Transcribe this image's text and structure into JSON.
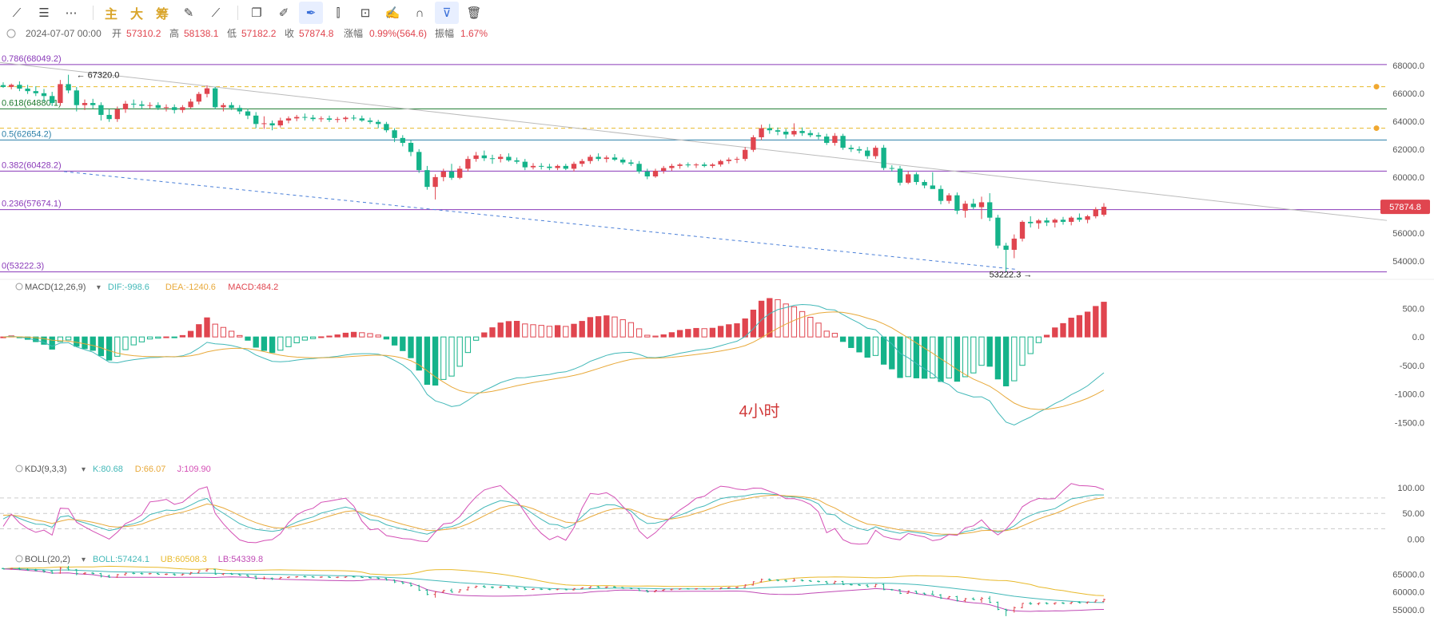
{
  "toolbar": {
    "items": [
      {
        "icon": "line-tool-icon",
        "glyph": "⟋"
      },
      {
        "icon": "horizontal-lines-icon",
        "glyph": "☰"
      },
      {
        "icon": "more-icon",
        "glyph": "⋯"
      },
      {
        "sep": true
      },
      {
        "text": "主"
      },
      {
        "text": "大"
      },
      {
        "text": "筹"
      },
      {
        "icon": "draw-edit-icon",
        "glyph": "✎"
      },
      {
        "icon": "brush-tool-icon",
        "glyph": "⟋"
      },
      {
        "sep": true
      },
      {
        "icon": "copy-icon",
        "glyph": "❐"
      },
      {
        "icon": "ruler-icon",
        "glyph": "✐"
      },
      {
        "icon": "pen-tool-icon",
        "glyph": "✒",
        "active": true
      },
      {
        "icon": "candlestick-icon",
        "glyph": "⫿"
      },
      {
        "icon": "lock-icon",
        "glyph": "⊡"
      },
      {
        "icon": "note-icon",
        "glyph": "✍"
      },
      {
        "icon": "magnet-icon",
        "glyph": "∩"
      },
      {
        "icon": "filter-icon",
        "glyph": "⊽",
        "active": true
      },
      {
        "icon": "trash-icon",
        "glyph": "🗑"
      }
    ]
  },
  "info_bar": {
    "date": "2024-07-07 00:00",
    "open_label": "开",
    "open": "57310.2",
    "high_label": "高",
    "high": "58138.1",
    "low_label": "低",
    "low": "57182.2",
    "close_label": "收",
    "close": "57874.8",
    "change_label": "涨幅",
    "change": "0.99%(564.6)",
    "amp_label": "振幅",
    "amp": "1.67%"
  },
  "colors": {
    "up": "#e0454f",
    "down": "#15b38a",
    "fib": "#8a3ab9",
    "dif": "#42b8b8",
    "dea": "#e8a93a",
    "k": "#42b8b8",
    "d": "#e8a93a",
    "j": "#d44fb5",
    "boll": "#42b8b8",
    "ub": "#e8b92a",
    "lb": "#c04ab5"
  },
  "chart_data": {
    "type": "candlestick",
    "timeframe_label": "4小时",
    "price_axis": {
      "ticks": [
        54000,
        56000,
        58000,
        60000,
        62000,
        64000,
        66000,
        68000
      ],
      "labels": [
        "54000.0",
        "56000.0",
        "58000.0",
        "60000.0",
        "62000.0",
        "64000.0",
        "66000.0",
        "68000.0"
      ],
      "range": [
        52800,
        68900
      ]
    },
    "last_price": "57874.8",
    "fib_levels": [
      {
        "label": "0.786(68049.2)",
        "value": 68049.2
      },
      {
        "label": "0.618(64880.1)",
        "value": 64880.1
      },
      {
        "label": "0.5(62654.2)",
        "value": 62654.2
      },
      {
        "label": "0.382(60428.2)",
        "value": 60428.2
      },
      {
        "label": "0.236(57674.1)",
        "value": 57674.1
      },
      {
        "label": "0(53222.3)",
        "value": 53222.3
      }
    ],
    "alert_lines": [
      66470,
      63500
    ],
    "annotations": [
      {
        "text": "67320.0",
        "value": 67320
      },
      {
        "text": "53222.3",
        "value": 53222.3
      }
    ],
    "candles": [
      {
        "o": 66580,
        "h": 66780,
        "l": 66380,
        "c": 66450
      },
      {
        "o": 66450,
        "h": 66690,
        "l": 66280,
        "c": 66600
      },
      {
        "o": 66600,
        "h": 66850,
        "l": 66150,
        "c": 66330
      },
      {
        "o": 66330,
        "h": 66600,
        "l": 65950,
        "c": 66150
      },
      {
        "o": 66150,
        "h": 66500,
        "l": 65800,
        "c": 66000
      },
      {
        "o": 66000,
        "h": 66300,
        "l": 65400,
        "c": 65800
      },
      {
        "o": 65800,
        "h": 66100,
        "l": 65100,
        "c": 65300
      },
      {
        "o": 65300,
        "h": 66950,
        "l": 65100,
        "c": 66650
      },
      {
        "o": 66650,
        "h": 67320,
        "l": 66000,
        "c": 66200
      },
      {
        "o": 66200,
        "h": 66450,
        "l": 64700,
        "c": 65150
      },
      {
        "o": 65150,
        "h": 65550,
        "l": 64800,
        "c": 65300
      },
      {
        "o": 65300,
        "h": 65600,
        "l": 64900,
        "c": 65150
      },
      {
        "o": 65150,
        "h": 65350,
        "l": 64050,
        "c": 64450
      },
      {
        "o": 64450,
        "h": 64850,
        "l": 63950,
        "c": 64150
      },
      {
        "o": 64150,
        "h": 65050,
        "l": 63950,
        "c": 64850
      },
      {
        "o": 64850,
        "h": 65450,
        "l": 64600,
        "c": 65250
      },
      {
        "o": 65250,
        "h": 65550,
        "l": 64950,
        "c": 65200
      },
      {
        "o": 65200,
        "h": 65450,
        "l": 64850,
        "c": 65100
      },
      {
        "o": 65100,
        "h": 65350,
        "l": 64900,
        "c": 65150
      },
      {
        "o": 65150,
        "h": 65350,
        "l": 64800,
        "c": 64950
      },
      {
        "o": 64950,
        "h": 65200,
        "l": 64700,
        "c": 65000
      },
      {
        "o": 65000,
        "h": 65200,
        "l": 64550,
        "c": 64800
      },
      {
        "o": 64800,
        "h": 65150,
        "l": 64600,
        "c": 65000
      },
      {
        "o": 65000,
        "h": 65600,
        "l": 64900,
        "c": 65400
      },
      {
        "o": 65400,
        "h": 66100,
        "l": 65200,
        "c": 65950
      },
      {
        "o": 65950,
        "h": 66550,
        "l": 65700,
        "c": 66350
      },
      {
        "o": 66350,
        "h": 66450,
        "l": 64850,
        "c": 65000
      },
      {
        "o": 65000,
        "h": 65300,
        "l": 64700,
        "c": 65150
      },
      {
        "o": 65150,
        "h": 65350,
        "l": 64800,
        "c": 64950
      },
      {
        "o": 64950,
        "h": 65150,
        "l": 64500,
        "c": 64700
      },
      {
        "o": 64700,
        "h": 64900,
        "l": 64150,
        "c": 64400
      },
      {
        "o": 64400,
        "h": 64650,
        "l": 63500,
        "c": 63800
      },
      {
        "o": 63800,
        "h": 64350,
        "l": 63450,
        "c": 63850
      },
      {
        "o": 63850,
        "h": 64050,
        "l": 63350,
        "c": 63700
      },
      {
        "o": 63700,
        "h": 64250,
        "l": 63550,
        "c": 64050
      },
      {
        "o": 64050,
        "h": 64350,
        "l": 63850,
        "c": 64200
      },
      {
        "o": 64200,
        "h": 64450,
        "l": 64000,
        "c": 64300
      },
      {
        "o": 64300,
        "h": 64550,
        "l": 64050,
        "c": 64250
      },
      {
        "o": 64250,
        "h": 64450,
        "l": 64000,
        "c": 64150
      },
      {
        "o": 64150,
        "h": 64350,
        "l": 63950,
        "c": 64200
      },
      {
        "o": 64200,
        "h": 64400,
        "l": 63950,
        "c": 64100
      },
      {
        "o": 64100,
        "h": 64300,
        "l": 63900,
        "c": 64150
      },
      {
        "o": 64150,
        "h": 64350,
        "l": 63950,
        "c": 64250
      },
      {
        "o": 64250,
        "h": 64450,
        "l": 64050,
        "c": 64200
      },
      {
        "o": 64200,
        "h": 64400,
        "l": 63950,
        "c": 64050
      },
      {
        "o": 64050,
        "h": 64250,
        "l": 63800,
        "c": 63950
      },
      {
        "o": 63950,
        "h": 64100,
        "l": 63500,
        "c": 63800
      },
      {
        "o": 63800,
        "h": 63950,
        "l": 63200,
        "c": 63350
      },
      {
        "o": 63350,
        "h": 63500,
        "l": 62500,
        "c": 62800
      },
      {
        "o": 62800,
        "h": 63000,
        "l": 62200,
        "c": 62450
      },
      {
        "o": 62450,
        "h": 62650,
        "l": 61500,
        "c": 61800
      },
      {
        "o": 61800,
        "h": 62000,
        "l": 60300,
        "c": 60500
      },
      {
        "o": 60500,
        "h": 60800,
        "l": 59100,
        "c": 59300
      },
      {
        "o": 59300,
        "h": 60200,
        "l": 58400,
        "c": 60000
      },
      {
        "o": 60000,
        "h": 60600,
        "l": 59700,
        "c": 60400
      },
      {
        "o": 60400,
        "h": 60950,
        "l": 59800,
        "c": 59950
      },
      {
        "o": 59950,
        "h": 60800,
        "l": 59850,
        "c": 60600
      },
      {
        "o": 60600,
        "h": 61500,
        "l": 60400,
        "c": 61300
      },
      {
        "o": 61300,
        "h": 61800,
        "l": 61100,
        "c": 61550
      },
      {
        "o": 61550,
        "h": 61900,
        "l": 61150,
        "c": 61350
      },
      {
        "o": 61350,
        "h": 61600,
        "l": 60950,
        "c": 61300
      },
      {
        "o": 61300,
        "h": 61650,
        "l": 61050,
        "c": 61450
      },
      {
        "o": 61450,
        "h": 61700,
        "l": 61100,
        "c": 61200
      },
      {
        "o": 61200,
        "h": 61400,
        "l": 60950,
        "c": 61100
      },
      {
        "o": 61100,
        "h": 61300,
        "l": 60500,
        "c": 60700
      },
      {
        "o": 60700,
        "h": 61000,
        "l": 60550,
        "c": 60800
      },
      {
        "o": 60800,
        "h": 61000,
        "l": 60550,
        "c": 60750
      },
      {
        "o": 60750,
        "h": 60950,
        "l": 60500,
        "c": 60650
      },
      {
        "o": 60650,
        "h": 60900,
        "l": 60500,
        "c": 60800
      },
      {
        "o": 60800,
        "h": 60950,
        "l": 60500,
        "c": 60600
      },
      {
        "o": 60600,
        "h": 61100,
        "l": 60400,
        "c": 60950
      },
      {
        "o": 60950,
        "h": 61300,
        "l": 60750,
        "c": 61150
      },
      {
        "o": 61150,
        "h": 61600,
        "l": 60950,
        "c": 61450
      },
      {
        "o": 61450,
        "h": 61700,
        "l": 61150,
        "c": 61300
      },
      {
        "o": 61300,
        "h": 61550,
        "l": 61050,
        "c": 61400
      },
      {
        "o": 61400,
        "h": 61650,
        "l": 61150,
        "c": 61250
      },
      {
        "o": 61250,
        "h": 61400,
        "l": 60900,
        "c": 61050
      },
      {
        "o": 61050,
        "h": 61250,
        "l": 60800,
        "c": 60950
      },
      {
        "o": 60950,
        "h": 61150,
        "l": 60250,
        "c": 60400
      },
      {
        "o": 60400,
        "h": 60600,
        "l": 59850,
        "c": 60050
      },
      {
        "o": 60050,
        "h": 60600,
        "l": 59950,
        "c": 60450
      },
      {
        "o": 60450,
        "h": 60800,
        "l": 60250,
        "c": 60650
      },
      {
        "o": 60650,
        "h": 60950,
        "l": 60450,
        "c": 60800
      },
      {
        "o": 60800,
        "h": 61000,
        "l": 60600,
        "c": 60900
      },
      {
        "o": 60900,
        "h": 61050,
        "l": 60700,
        "c": 60850
      },
      {
        "o": 60850,
        "h": 61000,
        "l": 60650,
        "c": 60900
      },
      {
        "o": 60900,
        "h": 61050,
        "l": 60700,
        "c": 60800
      },
      {
        "o": 60800,
        "h": 61000,
        "l": 60650,
        "c": 60900
      },
      {
        "o": 60900,
        "h": 61250,
        "l": 60750,
        "c": 61150
      },
      {
        "o": 61150,
        "h": 61400,
        "l": 60950,
        "c": 61250
      },
      {
        "o": 61250,
        "h": 61450,
        "l": 61000,
        "c": 61300
      },
      {
        "o": 61300,
        "h": 62150,
        "l": 61150,
        "c": 61950
      },
      {
        "o": 61950,
        "h": 63000,
        "l": 61800,
        "c": 62850
      },
      {
        "o": 62850,
        "h": 63750,
        "l": 62650,
        "c": 63500
      },
      {
        "o": 63500,
        "h": 63800,
        "l": 63100,
        "c": 63350
      },
      {
        "o": 63350,
        "h": 63550,
        "l": 63000,
        "c": 63250
      },
      {
        "o": 63250,
        "h": 63450,
        "l": 62750,
        "c": 63050
      },
      {
        "o": 63050,
        "h": 63850,
        "l": 62900,
        "c": 63300
      },
      {
        "o": 63300,
        "h": 63550,
        "l": 62950,
        "c": 63150
      },
      {
        "o": 63150,
        "h": 63350,
        "l": 62850,
        "c": 63000
      },
      {
        "o": 63000,
        "h": 63200,
        "l": 62700,
        "c": 62900
      },
      {
        "o": 62900,
        "h": 63100,
        "l": 62300,
        "c": 62450
      },
      {
        "o": 62450,
        "h": 63150,
        "l": 62250,
        "c": 62950
      },
      {
        "o": 62950,
        "h": 63100,
        "l": 61950,
        "c": 62100
      },
      {
        "o": 62100,
        "h": 62300,
        "l": 61800,
        "c": 62000
      },
      {
        "o": 62000,
        "h": 62200,
        "l": 61700,
        "c": 61900
      },
      {
        "o": 61900,
        "h": 62150,
        "l": 61300,
        "c": 61500
      },
      {
        "o": 61500,
        "h": 62250,
        "l": 61300,
        "c": 62100
      },
      {
        "o": 62100,
        "h": 62300,
        "l": 60500,
        "c": 60650
      },
      {
        "o": 60650,
        "h": 60850,
        "l": 60400,
        "c": 60600
      },
      {
        "o": 60600,
        "h": 60800,
        "l": 59400,
        "c": 59600
      },
      {
        "o": 59600,
        "h": 60400,
        "l": 59500,
        "c": 60200
      },
      {
        "o": 60200,
        "h": 60350,
        "l": 59450,
        "c": 59650
      },
      {
        "o": 59650,
        "h": 59800,
        "l": 59200,
        "c": 59400
      },
      {
        "o": 59400,
        "h": 60350,
        "l": 59250,
        "c": 59150
      },
      {
        "o": 59150,
        "h": 59400,
        "l": 58050,
        "c": 58300
      },
      {
        "o": 58300,
        "h": 58850,
        "l": 58100,
        "c": 58700
      },
      {
        "o": 58700,
        "h": 58900,
        "l": 57350,
        "c": 57600
      },
      {
        "o": 57600,
        "h": 58300,
        "l": 57100,
        "c": 58100
      },
      {
        "o": 58100,
        "h": 58450,
        "l": 57700,
        "c": 57850
      },
      {
        "o": 57850,
        "h": 58600,
        "l": 57000,
        "c": 58200
      },
      {
        "o": 58200,
        "h": 58850,
        "l": 56850,
        "c": 57100
      },
      {
        "o": 57100,
        "h": 57300,
        "l": 54900,
        "c": 55100
      },
      {
        "o": 55100,
        "h": 55300,
        "l": 53222,
        "c": 54800
      },
      {
        "o": 54800,
        "h": 55900,
        "l": 54200,
        "c": 55600
      },
      {
        "o": 55600,
        "h": 56900,
        "l": 55400,
        "c": 56800
      },
      {
        "o": 56800,
        "h": 57200,
        "l": 56400,
        "c": 56700
      },
      {
        "o": 56700,
        "h": 57000,
        "l": 56300,
        "c": 56900
      },
      {
        "o": 56900,
        "h": 57100,
        "l": 56500,
        "c": 56750
      },
      {
        "o": 56750,
        "h": 57050,
        "l": 56400,
        "c": 56950
      },
      {
        "o": 56950,
        "h": 57150,
        "l": 56600,
        "c": 56800
      },
      {
        "o": 56800,
        "h": 57200,
        "l": 56550,
        "c": 57100
      },
      {
        "o": 57100,
        "h": 57400,
        "l": 56800,
        "c": 56950
      },
      {
        "o": 56950,
        "h": 57300,
        "l": 56700,
        "c": 57200
      },
      {
        "o": 57200,
        "h": 57850,
        "l": 57050,
        "c": 57700
      },
      {
        "o": 57310.2,
        "h": 58138.1,
        "l": 57182.2,
        "c": 57874.8
      }
    ],
    "macd": {
      "title": "MACD(12,26,9)",
      "dif_label": "DIF:-998.6",
      "dea_label": "DEA:-1240.6",
      "macd_label": "MACD:484.2",
      "ticks": [
        500,
        0,
        -500,
        -1000,
        -1500
      ],
      "tick_labels": [
        "500.0",
        "0.0",
        "-500.0",
        "-1000.0",
        "-1500.0"
      ],
      "range": [
        -1650,
        800
      ]
    },
    "kdj": {
      "title": "KDJ(9,3,3)",
      "k_label": "K:80.68",
      "d_label": "D:66.07",
      "j_label": "J:109.90",
      "ticks": [
        100,
        50,
        0
      ],
      "tick_labels": [
        "100.00",
        "50.00",
        "0.00"
      ],
      "range": [
        -15,
        125
      ]
    },
    "boll": {
      "title": "BOLL(20,2)",
      "mid_label": "BOLL:57424.1",
      "ub_label": "UB:60508.3",
      "lb_label": "LB:54339.8",
      "ticks": [
        65000,
        60000,
        55000
      ],
      "tick_labels": [
        "65000.0",
        "60000.0",
        "55000.0"
      ],
      "range": [
        53200,
        68200
      ]
    }
  }
}
